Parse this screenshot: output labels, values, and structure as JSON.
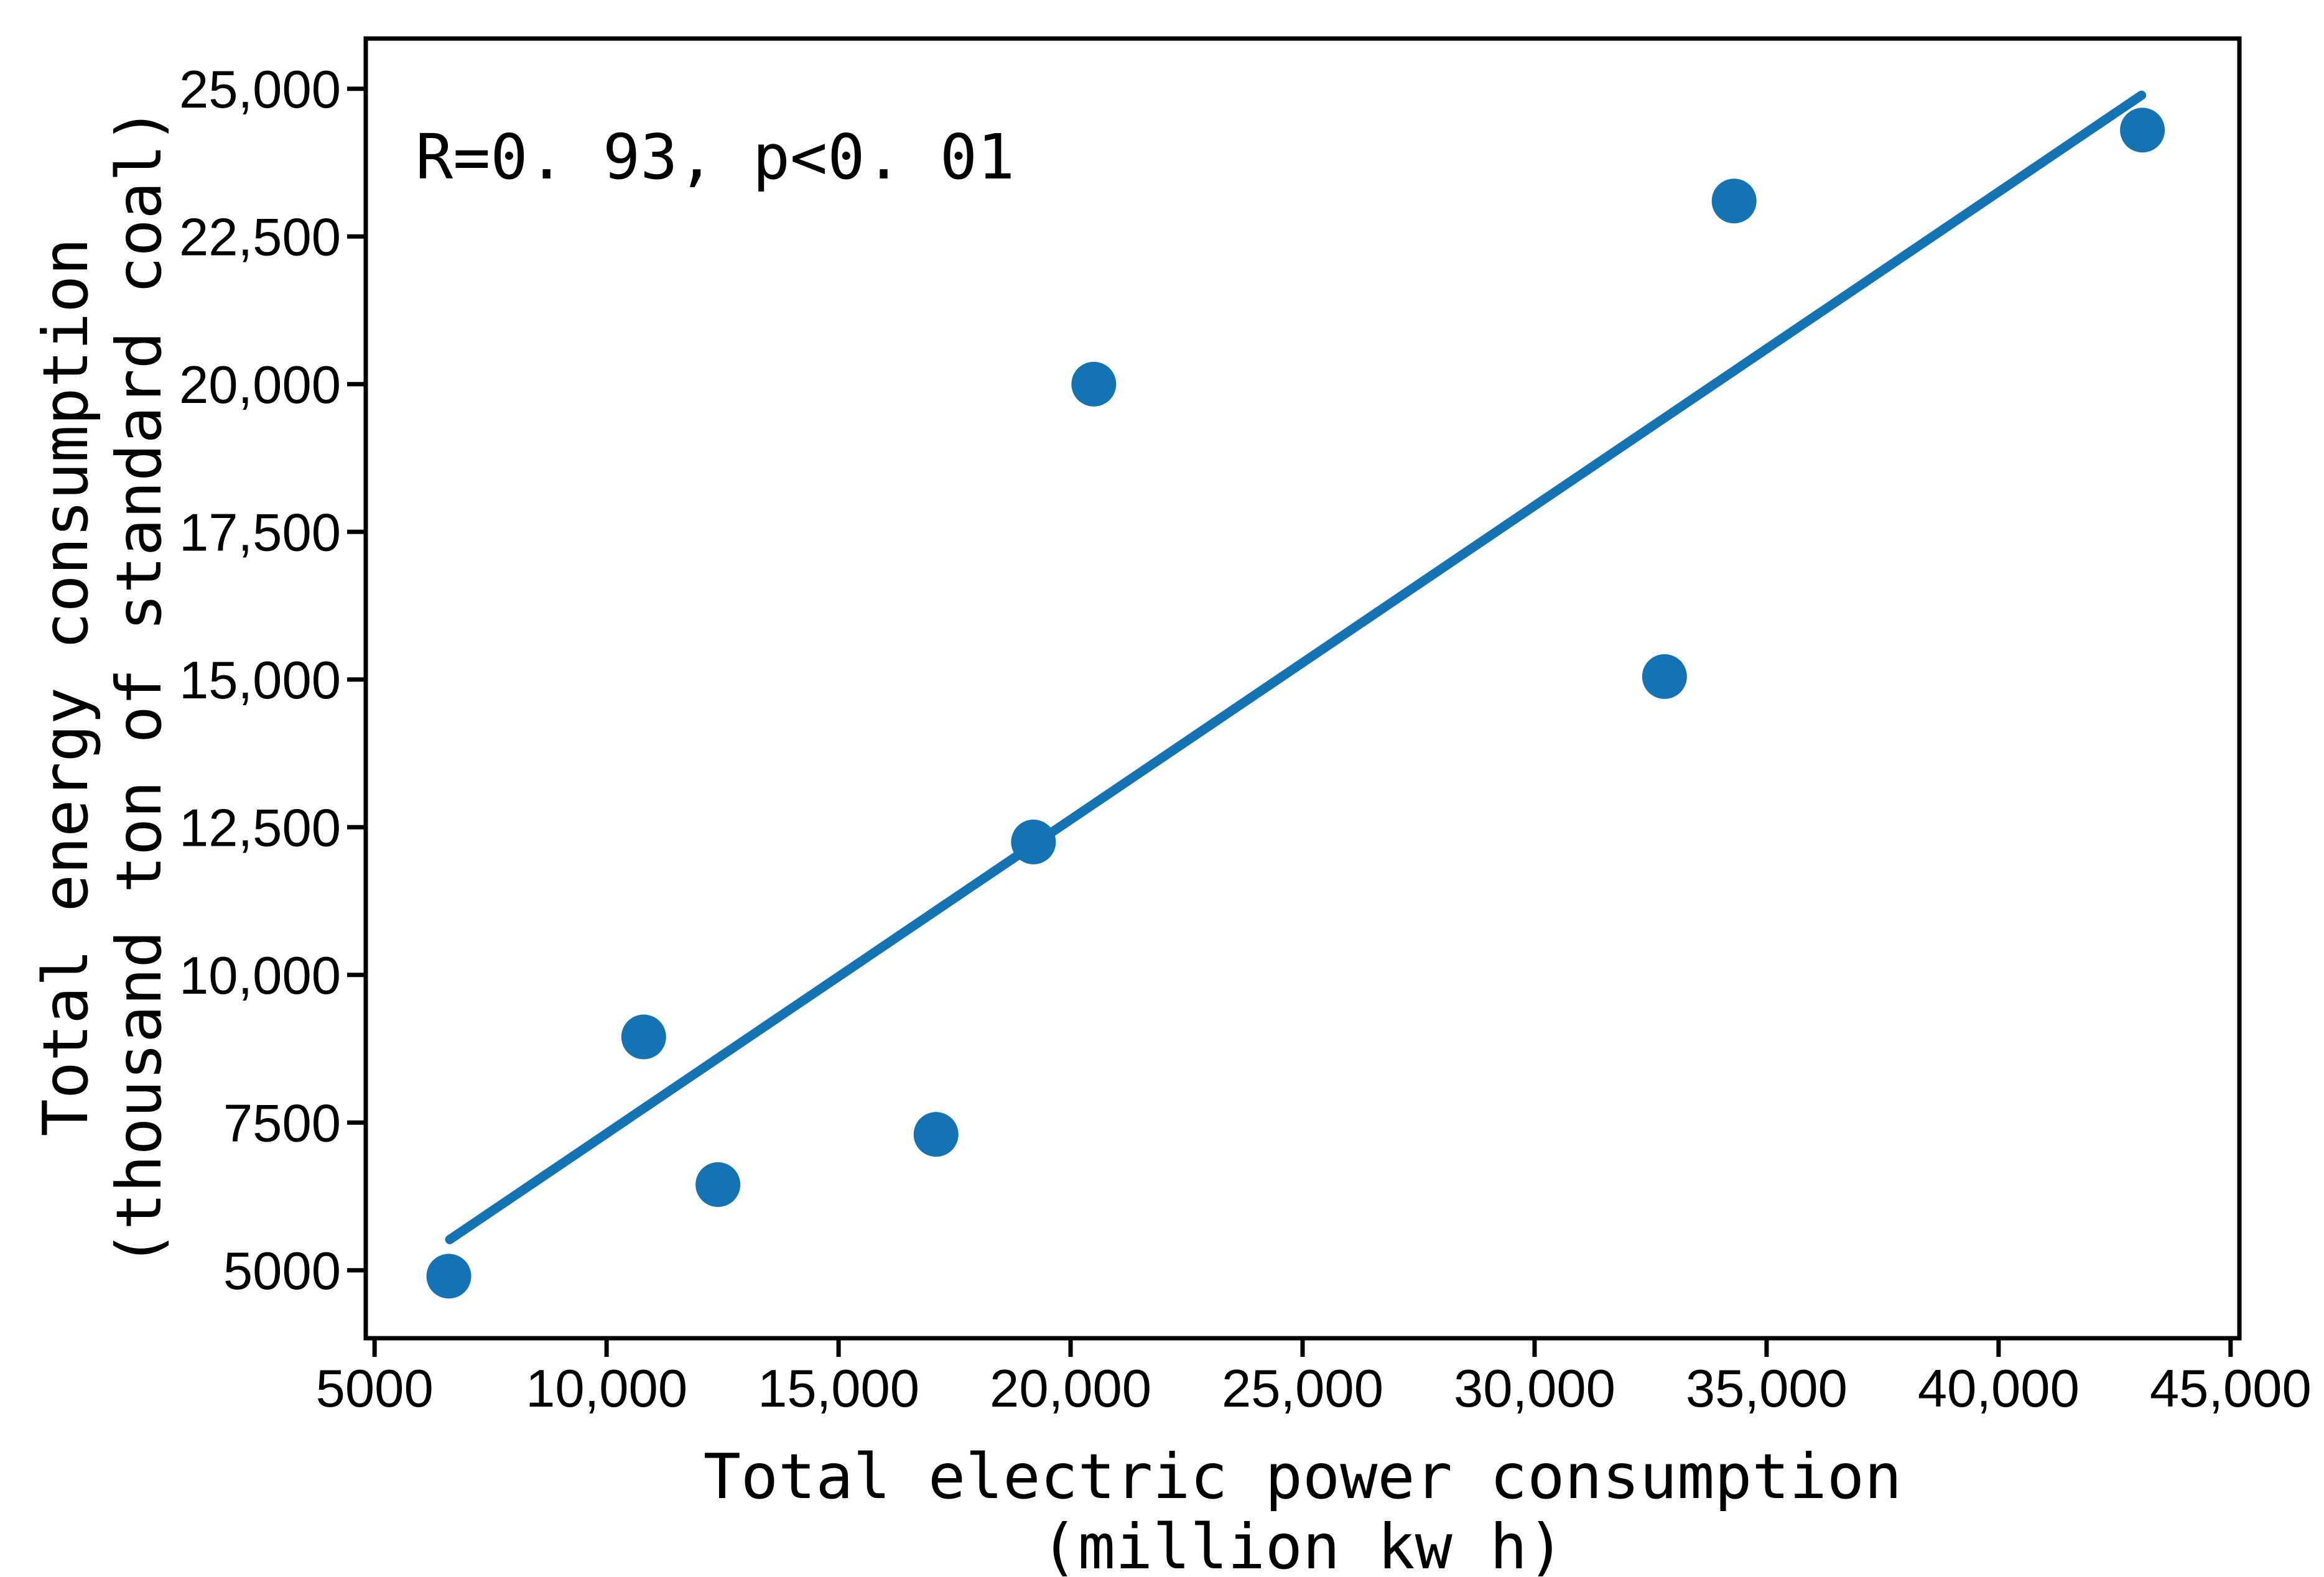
{
  "figure": {
    "annotation": "R=0. 93, p<0. 01",
    "x_axis_title_line1": "Total electric power consumption",
    "x_axis_title_line2": "(million kw h)",
    "y_axis_title_line1": "Total energy consumption",
    "y_axis_title_line2": "(thousand ton of standard coal)"
  },
  "chart_data": {
    "type": "scatter",
    "title": "",
    "xlabel": "Total electric power consumption (million kw h)",
    "ylabel": "Total energy consumption (thousand ton of standard coal)",
    "annotation": "R=0. 93, p<0. 01",
    "grid": false,
    "legend": "none",
    "xlim": [
      4810,
      45190
    ],
    "ylim": [
      3850,
      25850
    ],
    "x_ticks": [
      {
        "value": 5000,
        "label": "5000"
      },
      {
        "value": 10000,
        "label": "10,000"
      },
      {
        "value": 15000,
        "label": "15,000"
      },
      {
        "value": 20000,
        "label": "20,000"
      },
      {
        "value": 25000,
        "label": "25,000"
      },
      {
        "value": 30000,
        "label": "30,000"
      },
      {
        "value": 35000,
        "label": "35,000"
      },
      {
        "value": 40000,
        "label": "40,000"
      },
      {
        "value": 45000,
        "label": "45,000"
      }
    ],
    "y_ticks": [
      {
        "value": 5000,
        "label": "5000"
      },
      {
        "value": 7500,
        "label": "7500"
      },
      {
        "value": 10000,
        "label": "10,000"
      },
      {
        "value": 12500,
        "label": "12,500"
      },
      {
        "value": 15000,
        "label": "15,000"
      },
      {
        "value": 17500,
        "label": "17,500"
      },
      {
        "value": 20000,
        "label": "20,000"
      },
      {
        "value": 22500,
        "label": "22,500"
      },
      {
        "value": 25000,
        "label": "25,000"
      }
    ],
    "points": [
      {
        "x": 6600,
        "y": 4900
      },
      {
        "x": 10800,
        "y": 8950
      },
      {
        "x": 12400,
        "y": 6450
      },
      {
        "x": 17100,
        "y": 7300
      },
      {
        "x": 19200,
        "y": 12250
      },
      {
        "x": 20500,
        "y": 20000
      },
      {
        "x": 32800,
        "y": 15050
      },
      {
        "x": 34300,
        "y": 23100
      },
      {
        "x": 43100,
        "y": 24300
      }
    ],
    "trendline": {
      "x1": 6620,
      "y1": 5520,
      "x2": 43080,
      "y2": 24890
    },
    "colors": {
      "marker": "#1473b3",
      "line": "#1473b3",
      "axis": "#000000",
      "text": "#000000",
      "background": "#ffffff"
    }
  }
}
